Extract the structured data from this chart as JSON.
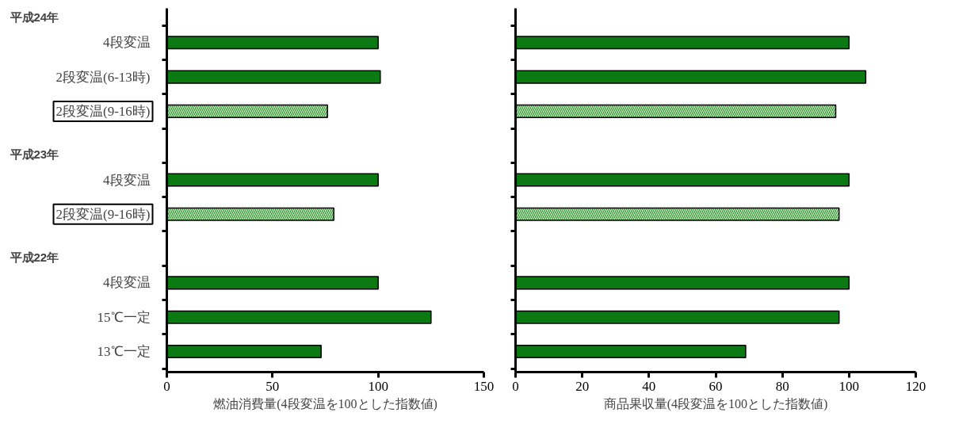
{
  "chart_data": [
    {
      "type": "bar",
      "orientation": "horizontal",
      "xlabel": "燃油消費量(4段変温を100とした指数値)",
      "categories": [
        "4段変温",
        "2段変温(6-13時)",
        "2段変温(9-16時)",
        null,
        "4段変温",
        "2段変温(9-16時)",
        null,
        "4段変温",
        "15℃一定",
        "13℃一定"
      ],
      "annotations": [
        "平成24年",
        "平成23年",
        "平成22年"
      ],
      "series": [
        {
          "color": "#0b7a12",
          "values": [
            100,
            101,
            76,
            null,
            100,
            79,
            null,
            100,
            125,
            73
          ],
          "colors": [
            "#0b7a12",
            "#0b7a12",
            "#c9ebc0",
            null,
            "#0b7a12",
            "#c9ebc0",
            null,
            "#0b7a12",
            "#0b7a12",
            "#0b7a12"
          ]
        }
      ],
      "xlim": [
        0,
        150
      ],
      "xticks": [
        0,
        50,
        100,
        150
      ],
      "grid": false
    },
    {
      "type": "bar",
      "orientation": "horizontal",
      "xlabel": "商品果収量(4段変温を100とした指数値)",
      "categories": [
        null,
        null,
        null,
        null,
        null,
        null,
        null,
        null,
        null,
        null
      ],
      "tick_labels": "x",
      "series": [
        {
          "color": "#0b7a12",
          "values": [
            100,
            105,
            96,
            null,
            100,
            97,
            null,
            100,
            97,
            69
          ],
          "colors": [
            "#0b7a12",
            "#0b7a12",
            "#c9ebc0",
            null,
            "#0b7a12",
            "#c9ebc0",
            null,
            "#0b7a12",
            "#0b7a12",
            "#0b7a12"
          ]
        }
      ],
      "xlim": [
        0,
        120
      ],
      "xticks": [
        0,
        20,
        40,
        60,
        80,
        100,
        120
      ],
      "grid": false
    }
  ]
}
